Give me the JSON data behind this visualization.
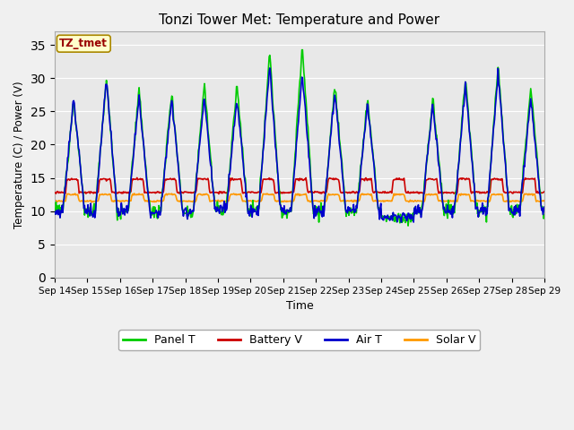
{
  "title": "Tonzi Tower Met: Temperature and Power",
  "xlabel": "Time",
  "ylabel": "Temperature (C) / Power (V)",
  "ylim": [
    0,
    37
  ],
  "yticks": [
    0,
    5,
    10,
    15,
    20,
    25,
    30,
    35
  ],
  "x_labels": [
    "Sep 14",
    "Sep 15",
    "Sep 16",
    "Sep 17",
    "Sep 18",
    "Sep 19",
    "Sep 20",
    "Sep 21",
    "Sep 22",
    "Sep 23",
    "Sep 24",
    "Sep 25",
    "Sep 26",
    "Sep 27",
    "Sep 28",
    "Sep 29"
  ],
  "legend_labels": [
    "Panel T",
    "Battery V",
    "Air T",
    "Solar V"
  ],
  "colors": {
    "panel_t": "#00CC00",
    "battery_v": "#CC0000",
    "air_t": "#0000CC",
    "solar_v": "#FF9900"
  },
  "annotation_text": "TZ_tmet",
  "annotation_color": "#990000",
  "annotation_bg": "#FFFFCC",
  "background_inner": "#E8E8E8",
  "background_outer": "#F0F0F0",
  "grid_color": "#FFFFFF",
  "n_points": 720,
  "hours_per_point": 0.5,
  "total_days": 15
}
